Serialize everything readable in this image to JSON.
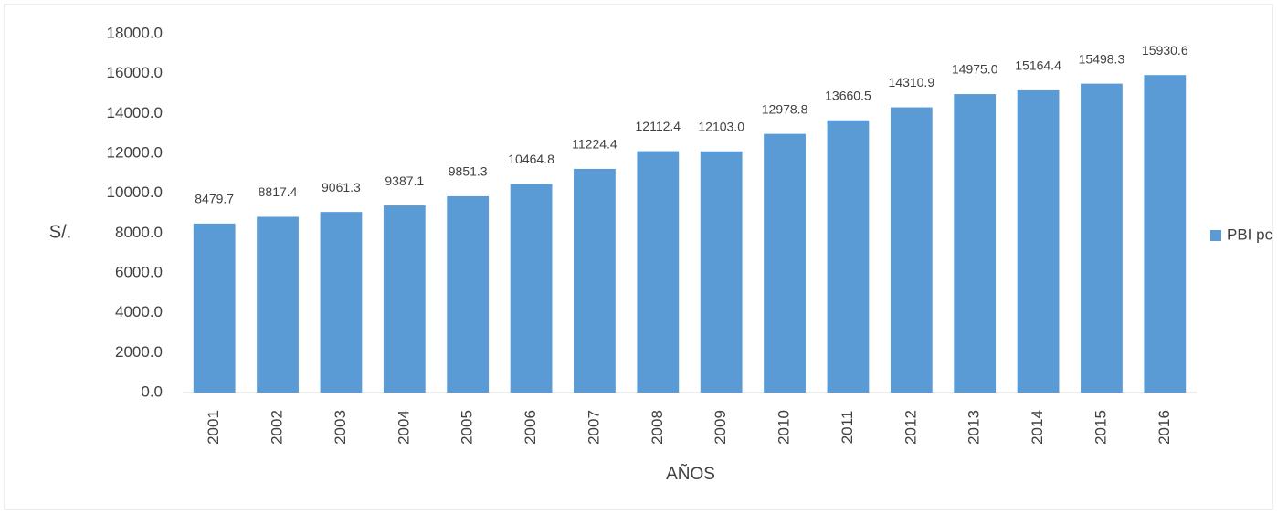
{
  "chart_data": {
    "type": "bar",
    "x_label": "AÑOS",
    "y_label": "S/.",
    "categories": [
      "2001",
      "2002",
      "2003",
      "2004",
      "2005",
      "2006",
      "2007",
      "2008",
      "2009",
      "2010",
      "2011",
      "2012",
      "2013",
      "2014",
      "2015",
      "2016"
    ],
    "series": [
      {
        "name": "PBI pc",
        "color": "#5b9bd5",
        "values": [
          8479.7,
          8817.4,
          9061.3,
          9387.1,
          9851.3,
          10464.8,
          11224.4,
          12112.4,
          12103.0,
          12978.8,
          13660.5,
          14310.9,
          14975.0,
          15164.4,
          15498.3,
          15930.6
        ],
        "value_labels": [
          "8479.7",
          "8817.4",
          "9061.3",
          "9387.1",
          "9851.3",
          "10464.8",
          "11224.4",
          "12112.4",
          "12103.0",
          "12978.8",
          "13660.5",
          "14310.9",
          "14975.0",
          "15164.4",
          "15498.3",
          "15930.6"
        ]
      }
    ],
    "ylim": [
      0,
      18000
    ],
    "yticks": [
      {
        "value": 0,
        "label": "0.0"
      },
      {
        "value": 2000,
        "label": "2000.0"
      },
      {
        "value": 4000,
        "label": "4000.0"
      },
      {
        "value": 6000,
        "label": "6000.0"
      },
      {
        "value": 8000,
        "label": "8000.0"
      },
      {
        "value": 10000,
        "label": "10000.0"
      },
      {
        "value": 12000,
        "label": "12000.0"
      },
      {
        "value": 14000,
        "label": "14000.0"
      },
      {
        "value": 16000,
        "label": "16000.0"
      },
      {
        "value": 18000,
        "label": "18000.0"
      }
    ],
    "grid": false,
    "legend": "right"
  }
}
